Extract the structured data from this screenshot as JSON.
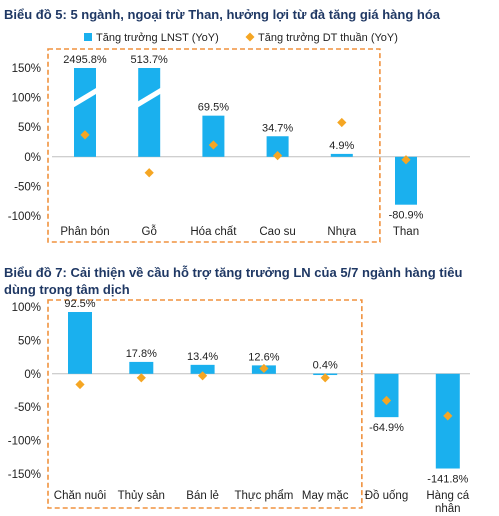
{
  "chart_data": [
    {
      "type": "bar",
      "title": "Biểu đồ 5: 5 ngành, ngoại trừ Than, hưởng lợi từ đà tăng giá hàng hóa",
      "categories": [
        "Phân bón",
        "Gỗ",
        "Hóa chất",
        "Cao su",
        "Nhựa",
        "Than"
      ],
      "series": [
        {
          "name": "Tăng trưởng LNST (YoY)",
          "kind": "bar",
          "color": "#1ab0ee",
          "values": [
            2495.8,
            513.7,
            69.5,
            34.7,
            4.9,
            -80.9
          ],
          "labels": [
            "2495.8%",
            "513.7%",
            "69.5%",
            "34.7%",
            "4.9%",
            "-80.9%"
          ]
        },
        {
          "name": "Tăng trưởng DT thuần (YoY)",
          "kind": "marker",
          "color": "#f5a623",
          "values": [
            37,
            -27,
            20,
            2,
            58,
            -5
          ]
        }
      ],
      "axis_breaks": [
        0,
        1
      ],
      "yticks": [
        "150%",
        "100%",
        "50%",
        "0%",
        "-50%",
        "-100%"
      ],
      "ylim": [
        -100,
        150
      ],
      "highlight_box_categories": 5,
      "legend": "top"
    },
    {
      "type": "bar",
      "title": "Biểu đồ 7: Cải thiện về cầu hỗ trợ tăng trưởng LN của 5/7 ngành hàng tiêu dùng trong tâm dịch",
      "categories": [
        "Chăn nuôi",
        "Thủy sản",
        "Bán lẻ",
        "Thực phẩm",
        "May mặc",
        "Đồ uống",
        "Hàng cá nhân"
      ],
      "series": [
        {
          "name": "",
          "kind": "bar",
          "color": "#1ab0ee",
          "values": [
            92.5,
            17.8,
            13.4,
            12.6,
            0.4,
            -64.9,
            -141.8
          ],
          "labels": [
            "92.5%",
            "17.8%",
            "13.4%",
            "12.6%",
            "0.4%",
            "-64.9%",
            "-141.8%"
          ]
        },
        {
          "name": "",
          "kind": "marker",
          "color": "#f5a623",
          "values": [
            -16,
            -6,
            -3,
            8,
            -6,
            -40,
            -63
          ]
        }
      ],
      "yticks": [
        "100%",
        "50%",
        "0%",
        "-50%",
        "-100%",
        "-150%"
      ],
      "ylim": [
        -150,
        100
      ],
      "highlight_box_categories": 5
    }
  ]
}
